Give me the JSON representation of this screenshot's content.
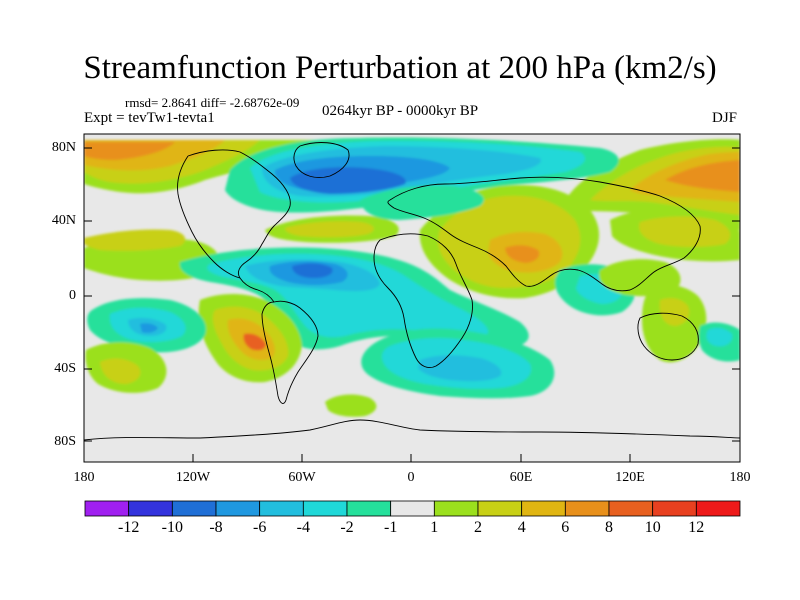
{
  "title": "Streamfunction Perturbation at 200 hPa (km2/s)",
  "stats": {
    "rmsd_text": "rmsd= 2.8641 diff= -2.68762e-09"
  },
  "subtitle_left": "Expt = tevTw1-tevta1",
  "subtitle_center": "0264kyr BP - 0000kyr BP",
  "subtitle_right": "DJF",
  "axes": {
    "lat_labels": [
      "80N",
      "40N",
      "0",
      "40S",
      "80S"
    ],
    "lon_labels": [
      "180",
      "120W",
      "60W",
      "0",
      "60E",
      "120E",
      "180"
    ]
  },
  "colorbar": {
    "labels": [
      "-12",
      "-10",
      "-8",
      "-6",
      "-4",
      "-2",
      "-1",
      "1",
      "2",
      "4",
      "6",
      "8",
      "10",
      "12"
    ],
    "colors": [
      "#a020f0",
      "#3333dd",
      "#1f6fd6",
      "#1f98e0",
      "#22bede",
      "#20d8d8",
      "#25e09b",
      "#e8e8e8",
      "#9be01d",
      "#c8d015",
      "#e0b512",
      "#e8901b",
      "#e86020",
      "#e84020",
      "#ee1a1a"
    ]
  },
  "map": {
    "background": "#e8e8e8",
    "coastline_color": "#000000"
  }
}
